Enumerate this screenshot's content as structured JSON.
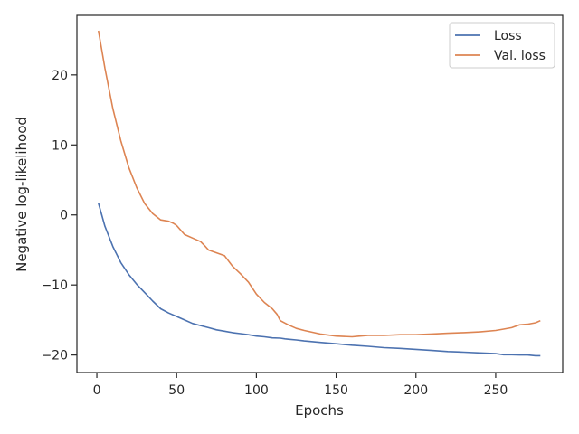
{
  "chart_data": {
    "type": "line",
    "title": "",
    "xlabel": "Epochs",
    "ylabel": "Negative log-likelihood",
    "xlim": [
      -12.5,
      292
    ],
    "ylim": [
      -22.5,
      28.5
    ],
    "xticks": [
      0,
      50,
      100,
      150,
      200,
      250
    ],
    "xtick_labels": [
      "0",
      "50",
      "100",
      "150",
      "200",
      "250"
    ],
    "yticks": [
      20,
      10,
      0,
      -10,
      -20
    ],
    "ytick_labels": [
      "20",
      "10",
      "0",
      "−10",
      "−20"
    ],
    "grid": false,
    "legend_position": "top-right",
    "series": [
      {
        "name": "Loss",
        "color": "#4c72b0",
        "x": [
          1,
          5,
          10,
          15,
          20,
          25,
          30,
          35,
          40,
          45,
          50,
          55,
          60,
          65,
          70,
          75,
          80,
          85,
          90,
          95,
          100,
          105,
          110,
          115,
          118,
          120,
          125,
          130,
          140,
          150,
          160,
          170,
          180,
          190,
          200,
          210,
          220,
          230,
          240,
          250,
          255,
          260,
          265,
          270,
          275,
          278
        ],
        "y": [
          1.7,
          -1.6,
          -4.5,
          -6.8,
          -8.5,
          -9.9,
          -11.1,
          -12.3,
          -13.4,
          -14.0,
          -14.5,
          -15.0,
          -15.5,
          -15.8,
          -16.1,
          -16.4,
          -16.6,
          -16.8,
          -16.95,
          -17.1,
          -17.3,
          -17.4,
          -17.55,
          -17.6,
          -17.7,
          -17.75,
          -17.85,
          -18.0,
          -18.2,
          -18.4,
          -18.6,
          -18.75,
          -18.95,
          -19.05,
          -19.2,
          -19.35,
          -19.5,
          -19.6,
          -19.7,
          -19.8,
          -19.95,
          -19.95,
          -20.0,
          -20.0,
          -20.1,
          -20.1
        ]
      },
      {
        "name": "Val. loss",
        "color": "#dd8452",
        "x": [
          1,
          5,
          10,
          15,
          20,
          25,
          30,
          35,
          40,
          45,
          48,
          50,
          55,
          60,
          65,
          68,
          70,
          75,
          80,
          85,
          90,
          95,
          100,
          105,
          110,
          113,
          115,
          120,
          125,
          130,
          140,
          150,
          160,
          165,
          170,
          180,
          190,
          200,
          210,
          220,
          230,
          240,
          250,
          255,
          260,
          265,
          270,
          275,
          278
        ],
        "y": [
          26.3,
          21.0,
          15.2,
          10.6,
          6.8,
          3.9,
          1.6,
          0.2,
          -0.7,
          -0.9,
          -1.2,
          -1.5,
          -2.8,
          -3.3,
          -3.8,
          -4.5,
          -5.0,
          -5.4,
          -5.8,
          -7.3,
          -8.4,
          -9.6,
          -11.3,
          -12.5,
          -13.4,
          -14.2,
          -15.1,
          -15.7,
          -16.2,
          -16.5,
          -17.0,
          -17.3,
          -17.4,
          -17.3,
          -17.2,
          -17.2,
          -17.1,
          -17.1,
          -17.0,
          -16.9,
          -16.8,
          -16.7,
          -16.5,
          -16.3,
          -16.1,
          -15.7,
          -15.6,
          -15.4,
          -15.1
        ]
      }
    ]
  }
}
